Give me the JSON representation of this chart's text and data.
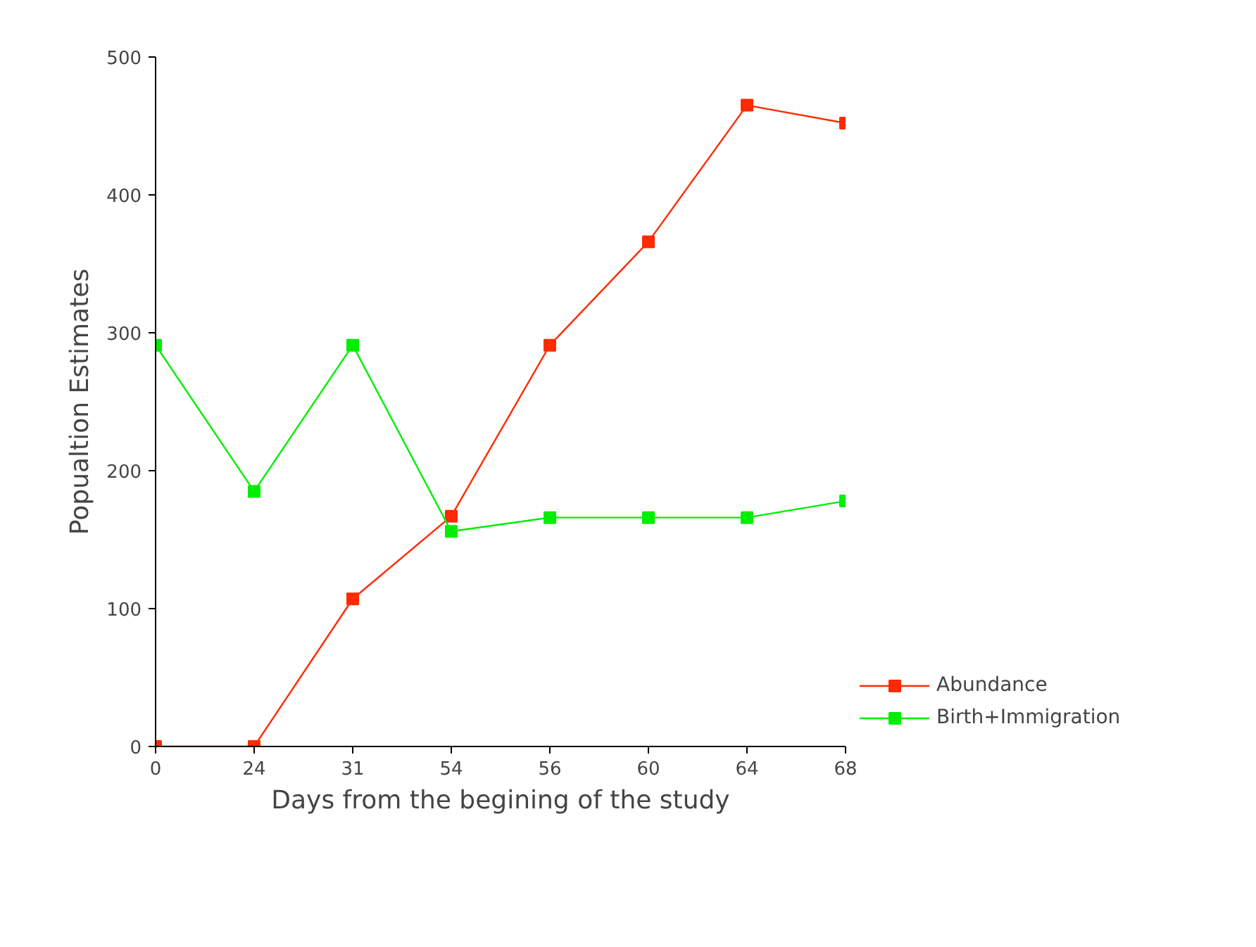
{
  "chart_data": {
    "type": "line",
    "xlabel": "Days from the begining of the study",
    "ylabel": "Popualtion Estimates",
    "categories": [
      "0",
      "24",
      "31",
      "54",
      "56",
      "60",
      "64",
      "68"
    ],
    "series": [
      {
        "name": "Abundance",
        "color": "#ff2a00",
        "values": [
          0,
          0,
          107,
          167,
          291,
          366,
          465,
          452
        ]
      },
      {
        "name": "Birth+Immigration",
        "color": "#00ee00",
        "values": [
          291,
          185,
          291,
          156,
          166,
          166,
          166,
          178
        ]
      }
    ],
    "ylim": [
      0,
      500
    ],
    "yticks": [
      0,
      100,
      200,
      300,
      400,
      500
    ],
    "grid": false,
    "legend": "right",
    "marker": "square",
    "line_style": "solid"
  }
}
